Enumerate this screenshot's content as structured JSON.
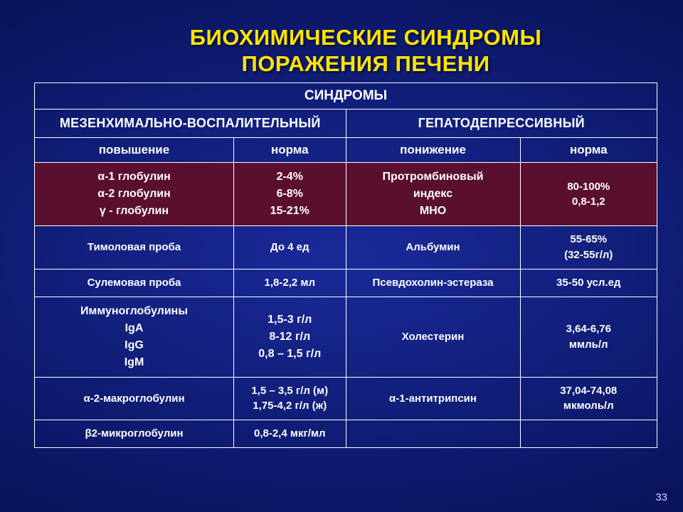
{
  "slide": {
    "title_line1": "БИОХИМИЧЕСКИЕ СИНДРОМЫ",
    "title_line2": "ПОРАЖЕНИЯ ПЕЧЕНИ",
    "page_number": "33"
  },
  "colors": {
    "background_center": "#1a2a9a",
    "background_edge": "#020530",
    "title_color": "#ffe400",
    "text_color": "#ffffff",
    "border_color": "#ffffff",
    "accent_row_bg": "#5a0f2f"
  },
  "typography": {
    "title_fontsize": 31,
    "title_weight": 900,
    "header1_fontsize": 19,
    "header2_fontsize": 18,
    "header3_fontsize": 17,
    "cell_fontsize": 15,
    "font_family": "Arial"
  },
  "table": {
    "type": "table",
    "col_widths_pct": [
      32,
      18,
      28,
      22
    ],
    "header_rows": [
      {
        "label": "СИНДРОМЫ",
        "colspan": 4
      }
    ],
    "group_headers": [
      {
        "label": "МЕЗЕНХИМАЛЬНО-ВОСПАЛИТЕЛЬНЫЙ",
        "colspan": 2
      },
      {
        "label": "ГЕПАТОДЕПРЕССИВНЫЙ",
        "colspan": 2
      }
    ],
    "sub_headers": [
      "повышение",
      "норма",
      "понижение",
      "норма"
    ],
    "rows": [
      {
        "accent": true,
        "cells": [
          [
            "α-1 глобулин",
            "α-2 глобулин",
            "γ - глобулин"
          ],
          [
            "2-4%",
            "6-8%",
            "15-21%"
          ],
          [
            "Протромбиновый",
            "индекс",
            "МНО"
          ],
          [
            "80-100%",
            "0,8-1,2"
          ]
        ]
      },
      {
        "accent": false,
        "cells": [
          [
            "Тимоловая проба"
          ],
          [
            "До 4 ед"
          ],
          [
            "Альбумин"
          ],
          [
            "55-65%",
            "(32-55г/л)"
          ]
        ]
      },
      {
        "accent": false,
        "cells": [
          [
            "Сулемовая проба"
          ],
          [
            "1,8-2,2 мл"
          ],
          [
            "Псевдохолин-эстераза"
          ],
          [
            "35-50 усл.ед"
          ]
        ]
      },
      {
        "accent": false,
        "cells": [
          [
            "Иммуноглобулины",
            "IgA",
            "IgG",
            "IgM"
          ],
          [
            "1,5-3 г/л",
            "8-12 г/л",
            "0,8 – 1,5 г/л"
          ],
          [
            "Холестерин"
          ],
          [
            "3,64-6,76",
            "ммль/л"
          ]
        ]
      },
      {
        "accent": false,
        "cells": [
          [
            "α-2-макроглобулин"
          ],
          [
            "1,5 – 3,5 г/л (м)",
            "1,75-4,2 г/л (ж)"
          ],
          [
            "α-1-антитрипсин"
          ],
          [
            "37,04-74,08",
            "мкмоль/л"
          ]
        ]
      },
      {
        "accent": false,
        "cells": [
          [
            "β2-микроглобулин"
          ],
          [
            "0,8-2,4 мкг/мл"
          ],
          [
            ""
          ],
          [
            ""
          ]
        ]
      }
    ]
  }
}
